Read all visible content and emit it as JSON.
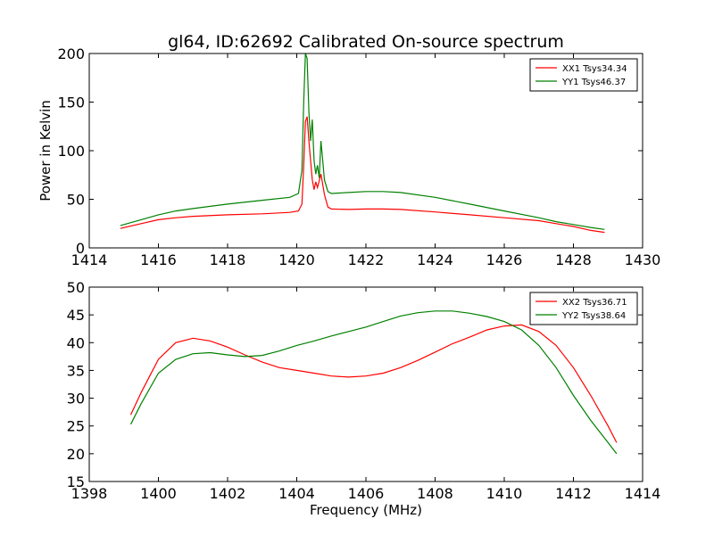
{
  "figure": {
    "title": "gl64, ID:62692 Calibrated On-source spectrum"
  },
  "chart_data": [
    {
      "type": "line",
      "xlabel": "",
      "ylabel": "Power in Kelvin",
      "xlim": [
        1414,
        1430
      ],
      "ylim": [
        0,
        200
      ],
      "xticks": [
        1414,
        1416,
        1418,
        1420,
        1422,
        1424,
        1426,
        1428,
        1430
      ],
      "yticks": [
        0,
        50,
        100,
        150,
        200
      ],
      "legend": "top-right",
      "series": [
        {
          "name": "XX1 Tsys34.34",
          "color": "#ff0000",
          "x": [
            1414.9,
            1415.5,
            1416.0,
            1416.5,
            1417.0,
            1418.0,
            1419.0,
            1419.8,
            1420.05,
            1420.15,
            1420.2,
            1420.25,
            1420.3,
            1420.35,
            1420.4,
            1420.45,
            1420.5,
            1420.55,
            1420.6,
            1420.7,
            1420.8,
            1420.9,
            1421.0,
            1421.5,
            1422.0,
            1422.5,
            1423.0,
            1424.0,
            1425.0,
            1426.0,
            1427.0,
            1427.5,
            1428.0,
            1428.5,
            1428.9
          ],
          "y": [
            20,
            25,
            29,
            31,
            32.5,
            34,
            35,
            36.5,
            38,
            45,
            85,
            130,
            135,
            110,
            90,
            70,
            60,
            68,
            62,
            76,
            55,
            42,
            40,
            39.5,
            40,
            40,
            39.5,
            37,
            34,
            31,
            28,
            25,
            22,
            18,
            16
          ]
        },
        {
          "name": "YY1 Tsys46.37",
          "color": "#008000",
          "x": [
            1414.9,
            1415.5,
            1416.0,
            1416.5,
            1417.0,
            1418.0,
            1419.0,
            1419.8,
            1420.05,
            1420.15,
            1420.2,
            1420.25,
            1420.3,
            1420.35,
            1420.4,
            1420.45,
            1420.5,
            1420.55,
            1420.6,
            1420.65,
            1420.7,
            1420.75,
            1420.8,
            1420.9,
            1421.0,
            1421.5,
            1422.0,
            1422.5,
            1423.0,
            1424.0,
            1425.0,
            1426.0,
            1427.0,
            1427.5,
            1428.0,
            1428.5,
            1428.9
          ],
          "y": [
            23,
            29,
            34,
            38,
            40.5,
            45,
            49,
            52,
            56,
            80,
            150,
            200,
            195,
            140,
            110,
            132,
            90,
            76,
            85,
            72,
            110,
            90,
            70,
            58,
            56,
            57,
            58,
            58,
            57,
            52,
            45,
            38,
            31,
            27,
            24,
            21,
            19
          ]
        }
      ]
    },
    {
      "type": "line",
      "xlabel": "Frequency (MHz)",
      "ylabel": "",
      "xlim": [
        1398,
        1414
      ],
      "ylim": [
        15,
        50
      ],
      "xticks": [
        1398,
        1400,
        1402,
        1404,
        1406,
        1408,
        1410,
        1412,
        1414
      ],
      "yticks": [
        15,
        20,
        25,
        30,
        35,
        40,
        45,
        50
      ],
      "legend": "top-right",
      "series": [
        {
          "name": "XX2 Tsys36.71",
          "color": "#ff0000",
          "x": [
            1399.2,
            1399.5,
            1400.0,
            1400.5,
            1401.0,
            1401.5,
            1402.0,
            1402.5,
            1403.0,
            1403.5,
            1404.0,
            1404.5,
            1405.0,
            1405.5,
            1406.0,
            1406.5,
            1407.0,
            1407.5,
            1408.0,
            1408.5,
            1409.0,
            1409.5,
            1410.0,
            1410.5,
            1411.0,
            1411.5,
            1412.0,
            1412.5,
            1413.0,
            1413.25
          ],
          "y": [
            27,
            31,
            37,
            40,
            40.8,
            40.3,
            39.2,
            37.8,
            36.5,
            35.5,
            35,
            34.5,
            34,
            33.8,
            34,
            34.5,
            35.5,
            36.8,
            38.3,
            39.8,
            41,
            42.3,
            43,
            43.2,
            42,
            39.5,
            35.5,
            30.5,
            25,
            22
          ]
        },
        {
          "name": "YY2 Tsys38.64",
          "color": "#008000",
          "x": [
            1399.2,
            1399.5,
            1400.0,
            1400.5,
            1401.0,
            1401.5,
            1402.0,
            1402.5,
            1403.0,
            1403.5,
            1404.0,
            1404.5,
            1405.0,
            1405.5,
            1406.0,
            1406.5,
            1407.0,
            1407.5,
            1408.0,
            1408.5,
            1409.0,
            1409.5,
            1410.0,
            1410.5,
            1411.0,
            1411.5,
            1412.0,
            1412.5,
            1413.0,
            1413.25
          ],
          "y": [
            25.3,
            29,
            34.5,
            37,
            38,
            38.2,
            37.8,
            37.5,
            37.7,
            38.5,
            39.5,
            40.3,
            41.2,
            42,
            42.8,
            43.8,
            44.8,
            45.4,
            45.7,
            45.7,
            45.3,
            44.7,
            43.8,
            42.3,
            39.5,
            35.5,
            30.5,
            26,
            22,
            20
          ]
        }
      ]
    }
  ]
}
